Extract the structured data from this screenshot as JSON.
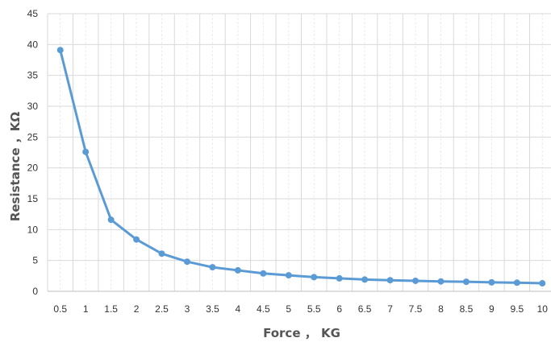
{
  "chart_data": {
    "type": "line",
    "title": "",
    "xlabel": "Force ， KG",
    "ylabel": "Resistance ，KΩ",
    "categories": [
      "0.5",
      "1",
      "1.5",
      "2",
      "2.5",
      "3",
      "3.5",
      "4",
      "4.5",
      "5",
      "5.5",
      "6",
      "6.5",
      "7",
      "7.5",
      "8",
      "8.5",
      "9",
      "9.5",
      "10"
    ],
    "y_ticks": [
      "0",
      "5",
      "10",
      "15",
      "20",
      "25",
      "30",
      "35",
      "40",
      "45"
    ],
    "ylim": [
      0,
      45
    ],
    "grid": true,
    "legend": "none",
    "series": [
      {
        "color": "#5b9bd5",
        "values": [
          39.1,
          22.6,
          11.6,
          8.4,
          6.1,
          4.8,
          3.9,
          3.4,
          2.9,
          2.6,
          2.3,
          2.1,
          1.9,
          1.8,
          1.7,
          1.6,
          1.55,
          1.45,
          1.4,
          1.3
        ]
      }
    ]
  }
}
